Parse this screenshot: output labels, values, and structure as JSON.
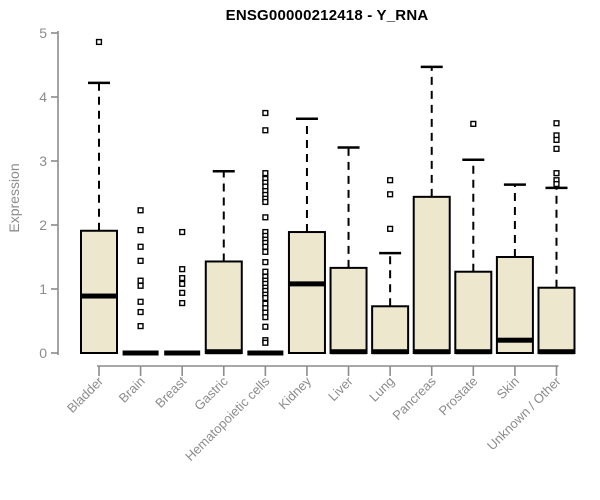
{
  "chart_data": {
    "type": "boxplot",
    "title": "ENSG00000212418 - Y_RNA",
    "ylabel": "Expression",
    "xlabel": "",
    "ylim": [
      0,
      5
    ],
    "yticks": [
      0,
      1,
      2,
      3,
      4,
      5
    ],
    "grid": false,
    "legend": "none",
    "categories": [
      "Bladder",
      "Brain",
      "Breast",
      "Gastric",
      "Hematopoietic cells",
      "Kidney",
      "Liver",
      "Lung",
      "Pancreas",
      "Prostate",
      "Skin",
      "Unknown / Other"
    ],
    "series": [
      {
        "label": "Bladder",
        "q1": 0,
        "median": 0.89,
        "q3": 1.91,
        "whisker_low": 0,
        "whisker_high": 4.22,
        "outliers": [
          4.86
        ]
      },
      {
        "label": "Brain",
        "q1": 0,
        "median": 0.0,
        "q3": 0.0,
        "whisker_low": 0,
        "whisker_high": 0.0,
        "outliers": [
          2.23,
          1.92,
          1.66,
          1.44,
          1.13,
          1.05,
          0.8,
          0.64,
          0.42
        ]
      },
      {
        "label": "Breast",
        "q1": 0,
        "median": 0.0,
        "q3": 0.0,
        "whisker_low": 0,
        "whisker_high": 0.0,
        "outliers": [
          1.89,
          1.31,
          1.17,
          1.08,
          0.94,
          0.78
        ]
      },
      {
        "label": "Gastric",
        "q1": 0,
        "median": 0.02,
        "q3": 1.43,
        "whisker_low": 0,
        "whisker_high": 2.84,
        "outliers": []
      },
      {
        "label": "Hematopoietic cells",
        "q1": 0,
        "median": 0.0,
        "q3": 0.0,
        "whisker_low": 0,
        "whisker_high": 0.0,
        "outliers": [
          3.75,
          3.48,
          2.81,
          2.72,
          2.66,
          2.6,
          2.53,
          2.47,
          2.41,
          2.36,
          2.12,
          1.89,
          1.83,
          1.77,
          1.72,
          1.66,
          1.58,
          1.42,
          1.27,
          1.19,
          1.13,
          1.08,
          1.02,
          0.97,
          0.91,
          0.86,
          0.77,
          0.7,
          0.63,
          0.56,
          0.41,
          0.2,
          0.16
        ]
      },
      {
        "label": "Kidney",
        "q1": 0,
        "median": 1.08,
        "q3": 1.89,
        "whisker_low": 0,
        "whisker_high": 3.66,
        "outliers": []
      },
      {
        "label": "Liver",
        "q1": 0,
        "median": 0.02,
        "q3": 1.33,
        "whisker_low": 0,
        "whisker_high": 3.21,
        "outliers": []
      },
      {
        "label": "Lung",
        "q1": 0,
        "median": 0.02,
        "q3": 0.73,
        "whisker_low": 0,
        "whisker_high": 1.56,
        "outliers": [
          2.7,
          2.48,
          1.94
        ]
      },
      {
        "label": "Pancreas",
        "q1": 0,
        "median": 0.02,
        "q3": 2.44,
        "whisker_low": 0,
        "whisker_high": 4.47,
        "outliers": []
      },
      {
        "label": "Prostate",
        "q1": 0,
        "median": 0.02,
        "q3": 1.27,
        "whisker_low": 0,
        "whisker_high": 3.02,
        "outliers": [
          3.58
        ]
      },
      {
        "label": "Skin",
        "q1": 0,
        "median": 0.2,
        "q3": 1.5,
        "whisker_low": 0,
        "whisker_high": 2.63,
        "outliers": []
      },
      {
        "label": "Unknown / Other",
        "q1": 0,
        "median": 0.02,
        "q3": 1.02,
        "whisker_low": 0,
        "whisker_high": 2.58,
        "outliers": [
          3.59,
          3.4,
          3.33,
          3.19,
          2.81,
          2.7,
          2.64
        ]
      }
    ],
    "colors": {
      "box_fill": "#EDE8CD",
      "box_border": "#000000",
      "median": "#000000",
      "whisker": "#000000",
      "outlier_stroke": "#000000",
      "outlier_fill": "#FFFFFF",
      "axis": "#8C8C8C",
      "tick_label": "#8C8C8C",
      "title": "#000000",
      "background": "#FFFFFF"
    }
  }
}
